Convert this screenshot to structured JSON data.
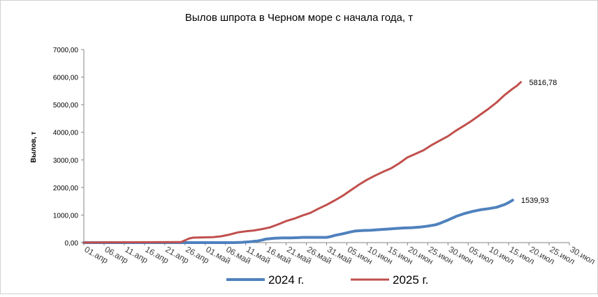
{
  "chart_data": {
    "type": "line",
    "title": "Вылов шпрота в Черном море с начала года, т",
    "ylabel": "Вылов, т",
    "xlabel": "",
    "ylim": [
      0,
      7000
    ],
    "yticks": [
      "0,00",
      "1000,00",
      "2000,00",
      "3000,00",
      "4000,00",
      "5000,00",
      "6000,00",
      "7000,00"
    ],
    "xlim": [
      "2024-04-01",
      "2024-07-30"
    ],
    "xticks": [
      "01.апр",
      "06.апр",
      "11.апр",
      "16.апр",
      "21.апр",
      "26.апр",
      "01.май",
      "06.май",
      "11.май",
      "16.май",
      "21.май",
      "26.май",
      "31.май",
      "05.июн",
      "10.июн",
      "15.июн",
      "20.июн",
      "25.июн",
      "30.июн",
      "05.июл",
      "10.июл",
      "15.июл",
      "20.июл",
      "25.июл",
      "30.июл"
    ],
    "grid": false,
    "legend_position": "bottom",
    "series": [
      {
        "name": "2024 г.",
        "color": "#4f81bd",
        "end_label": "1539,93",
        "points": [
          [
            "2024-04-01",
            0
          ],
          [
            "2024-05-05",
            0
          ],
          [
            "2024-05-08",
            0
          ],
          [
            "2024-05-10",
            10
          ],
          [
            "2024-05-12",
            30
          ],
          [
            "2024-05-14",
            60
          ],
          [
            "2024-05-15",
            90
          ],
          [
            "2024-05-16",
            130
          ],
          [
            "2024-05-18",
            160
          ],
          [
            "2024-05-20",
            170
          ],
          [
            "2024-05-22",
            170
          ],
          [
            "2024-05-24",
            180
          ],
          [
            "2024-05-25",
            190
          ],
          [
            "2024-05-31",
            190
          ],
          [
            "2024-06-01",
            220
          ],
          [
            "2024-06-02",
            260
          ],
          [
            "2024-06-04",
            320
          ],
          [
            "2024-06-06",
            390
          ],
          [
            "2024-06-07",
            420
          ],
          [
            "2024-06-09",
            440
          ],
          [
            "2024-06-11",
            450
          ],
          [
            "2024-06-13",
            470
          ],
          [
            "2024-06-15",
            490
          ],
          [
            "2024-06-17",
            510
          ],
          [
            "2024-06-19",
            530
          ],
          [
            "2024-06-21",
            540
          ],
          [
            "2024-06-23",
            560
          ],
          [
            "2024-06-25",
            600
          ],
          [
            "2024-06-27",
            650
          ],
          [
            "2024-06-28",
            700
          ],
          [
            "2024-06-30",
            820
          ],
          [
            "2024-07-02",
            950
          ],
          [
            "2024-07-04",
            1050
          ],
          [
            "2024-07-06",
            1130
          ],
          [
            "2024-07-08",
            1190
          ],
          [
            "2024-07-10",
            1230
          ],
          [
            "2024-07-12",
            1280
          ],
          [
            "2024-07-14",
            1380
          ],
          [
            "2024-07-15",
            1450
          ],
          [
            "2024-07-16",
            1539.93
          ]
        ]
      },
      {
        "name": "2025 г.",
        "color": "#c0504d",
        "end_label": "5816,78",
        "points": [
          [
            "2024-04-01",
            0
          ],
          [
            "2024-04-06",
            10
          ],
          [
            "2024-04-25",
            20
          ],
          [
            "2024-04-26",
            80
          ],
          [
            "2024-04-27",
            150
          ],
          [
            "2024-04-28",
            180
          ],
          [
            "2024-05-03",
            200
          ],
          [
            "2024-05-05",
            230
          ],
          [
            "2024-05-07",
            290
          ],
          [
            "2024-05-09",
            370
          ],
          [
            "2024-05-11",
            410
          ],
          [
            "2024-05-13",
            440
          ],
          [
            "2024-05-15",
            490
          ],
          [
            "2024-05-17",
            550
          ],
          [
            "2024-05-19",
            660
          ],
          [
            "2024-05-21",
            780
          ],
          [
            "2024-05-23",
            870
          ],
          [
            "2024-05-25",
            980
          ],
          [
            "2024-05-27",
            1080
          ],
          [
            "2024-05-29",
            1230
          ],
          [
            "2024-05-31",
            1370
          ],
          [
            "2024-06-02",
            1530
          ],
          [
            "2024-06-04",
            1700
          ],
          [
            "2024-06-06",
            1900
          ],
          [
            "2024-06-08",
            2100
          ],
          [
            "2024-06-10",
            2280
          ],
          [
            "2024-06-12",
            2430
          ],
          [
            "2024-06-14",
            2570
          ],
          [
            "2024-06-16",
            2700
          ],
          [
            "2024-06-18",
            2880
          ],
          [
            "2024-06-20",
            3090
          ],
          [
            "2024-06-22",
            3220
          ],
          [
            "2024-06-24",
            3350
          ],
          [
            "2024-06-26",
            3540
          ],
          [
            "2024-06-28",
            3700
          ],
          [
            "2024-06-30",
            3860
          ],
          [
            "2024-07-02",
            4060
          ],
          [
            "2024-07-04",
            4240
          ],
          [
            "2024-07-06",
            4430
          ],
          [
            "2024-07-08",
            4640
          ],
          [
            "2024-07-10",
            4850
          ],
          [
            "2024-07-12",
            5080
          ],
          [
            "2024-07-14",
            5350
          ],
          [
            "2024-07-16",
            5580
          ],
          [
            "2024-07-17",
            5680
          ],
          [
            "2024-07-18",
            5816.78
          ]
        ]
      }
    ]
  }
}
